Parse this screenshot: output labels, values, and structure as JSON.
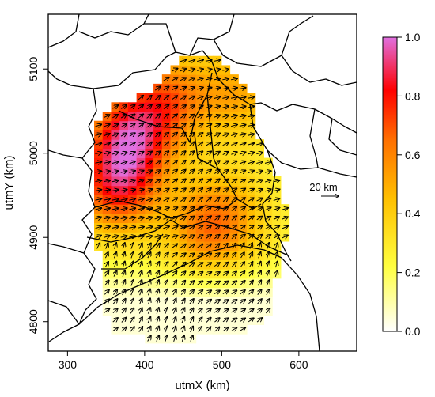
{
  "chart_data": {
    "type": "heatmap",
    "xlabel": "utmX (km)",
    "ylabel": "utmY (km)",
    "xlim": [
      275,
      675
    ],
    "ylim": [
      4765,
      5165
    ],
    "xticks": [
      "300",
      "400",
      "500",
      "600"
    ],
    "yticks": [
      "4800",
      "4900",
      "5000",
      "5100"
    ],
    "scale_bar_label": "20 km",
    "colorbar": {
      "range": [
        0,
        1
      ],
      "ticks": [
        "0.0",
        "0.2",
        "0.4",
        "0.6",
        "0.8",
        "1.0"
      ],
      "colors": [
        "#ffffff",
        "#ffff00",
        "#ffa000",
        "#ff0000",
        "#e060e0"
      ]
    },
    "cell_size_km": 11,
    "field": {
      "description": "",
      "hotspots": [
        {
          "x": 380,
          "y": 5020,
          "value": 0.8
        },
        {
          "x": 365,
          "y": 4960,
          "value": 0.75
        },
        {
          "x": 430,
          "y": 5065,
          "value": 0.62
        },
        {
          "x": 480,
          "y": 4910,
          "value": 0.55
        },
        {
          "x": 520,
          "y": 5070,
          "value": 0.5
        },
        {
          "x": 510,
          "y": 4930,
          "value": 0.42
        }
      ]
    }
  }
}
